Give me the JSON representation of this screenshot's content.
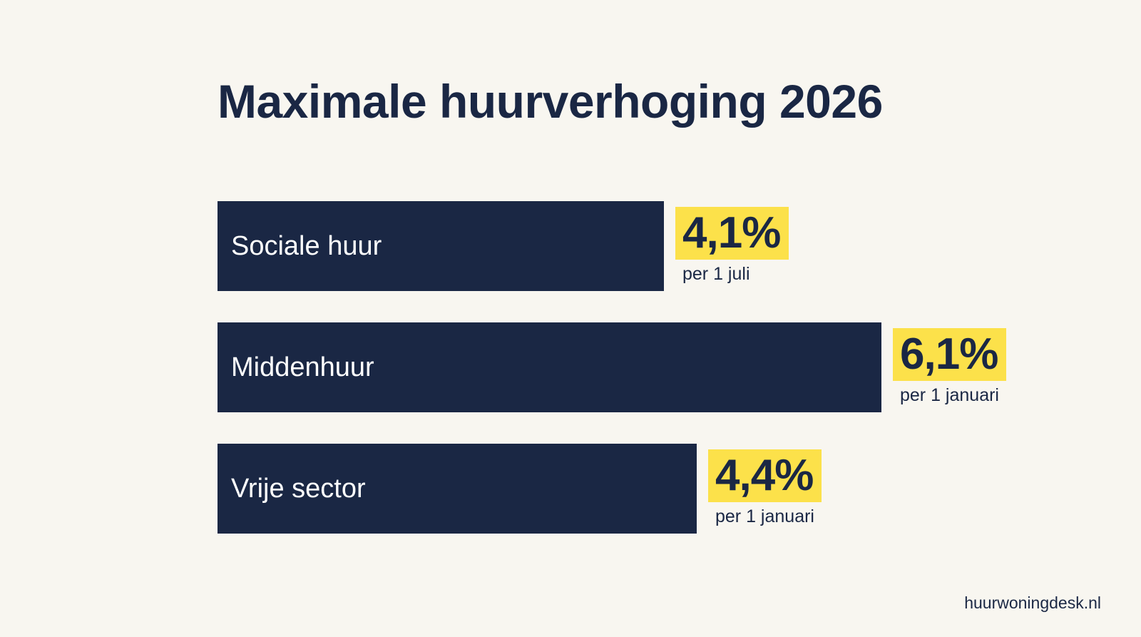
{
  "colors": {
    "background": "#f8f6f0",
    "bar": "#1a2744",
    "highlight": "#fce14a",
    "text": "#1a2744"
  },
  "source": "huurwoningdesk.nl",
  "chart_data": {
    "type": "bar",
    "orientation": "horizontal",
    "title": "Maximale huurverhoging 2026",
    "categories": [
      "Sociale huur",
      "Middenhuur",
      "Vrije sector"
    ],
    "values": [
      4.1,
      6.1,
      4.4
    ],
    "value_labels": [
      "4,1%",
      "6,1%",
      "4,4%"
    ],
    "notes": [
      "per 1 juli",
      "per 1 januari",
      "per 1 januari"
    ],
    "unit": "%",
    "xlim": [
      0,
      7.2
    ],
    "grid": false,
    "legend": "none"
  }
}
